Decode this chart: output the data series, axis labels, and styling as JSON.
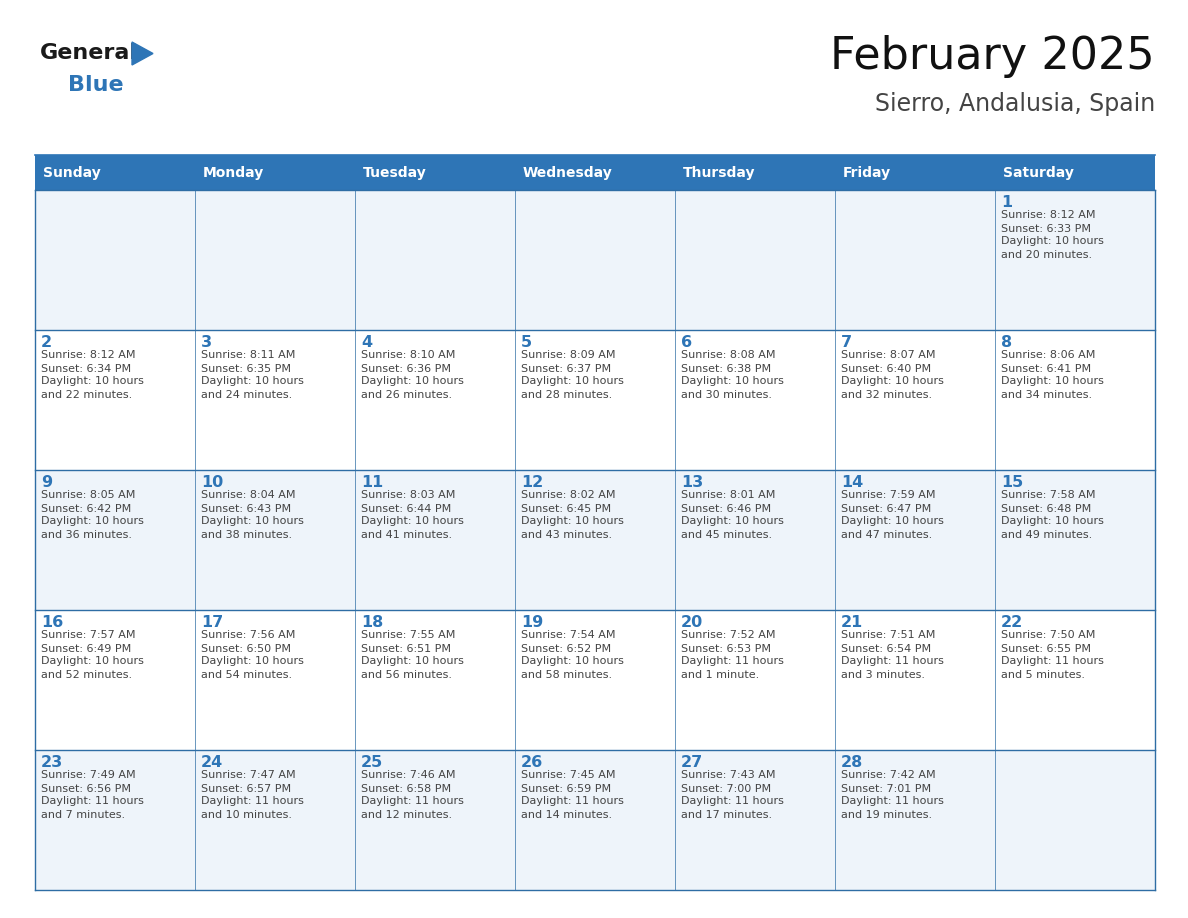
{
  "title": "February 2025",
  "subtitle": "Sierro, Andalusia, Spain",
  "header_bg": "#2E75B6",
  "header_text_color": "#FFFFFF",
  "cell_bg_even": "#EEF4FA",
  "cell_bg_odd": "#FFFFFF",
  "text_color": "#444444",
  "day_number_color": "#2E75B6",
  "border_color": "#2E6DA4",
  "separator_color": "#2E75B6",
  "days_of_week": [
    "Sunday",
    "Monday",
    "Tuesday",
    "Wednesday",
    "Thursday",
    "Friday",
    "Saturday"
  ],
  "calendar_data": [
    [
      null,
      null,
      null,
      null,
      null,
      null,
      {
        "day": "1",
        "sunrise": "8:12 AM",
        "sunset": "6:33 PM",
        "dl1": "Daylight: 10 hours",
        "dl2": "and 20 minutes."
      }
    ],
    [
      {
        "day": "2",
        "sunrise": "8:12 AM",
        "sunset": "6:34 PM",
        "dl1": "Daylight: 10 hours",
        "dl2": "and 22 minutes."
      },
      {
        "day": "3",
        "sunrise": "8:11 AM",
        "sunset": "6:35 PM",
        "dl1": "Daylight: 10 hours",
        "dl2": "and 24 minutes."
      },
      {
        "day": "4",
        "sunrise": "8:10 AM",
        "sunset": "6:36 PM",
        "dl1": "Daylight: 10 hours",
        "dl2": "and 26 minutes."
      },
      {
        "day": "5",
        "sunrise": "8:09 AM",
        "sunset": "6:37 PM",
        "dl1": "Daylight: 10 hours",
        "dl2": "and 28 minutes."
      },
      {
        "day": "6",
        "sunrise": "8:08 AM",
        "sunset": "6:38 PM",
        "dl1": "Daylight: 10 hours",
        "dl2": "and 30 minutes."
      },
      {
        "day": "7",
        "sunrise": "8:07 AM",
        "sunset": "6:40 PM",
        "dl1": "Daylight: 10 hours",
        "dl2": "and 32 minutes."
      },
      {
        "day": "8",
        "sunrise": "8:06 AM",
        "sunset": "6:41 PM",
        "dl1": "Daylight: 10 hours",
        "dl2": "and 34 minutes."
      }
    ],
    [
      {
        "day": "9",
        "sunrise": "8:05 AM",
        "sunset": "6:42 PM",
        "dl1": "Daylight: 10 hours",
        "dl2": "and 36 minutes."
      },
      {
        "day": "10",
        "sunrise": "8:04 AM",
        "sunset": "6:43 PM",
        "dl1": "Daylight: 10 hours",
        "dl2": "and 38 minutes."
      },
      {
        "day": "11",
        "sunrise": "8:03 AM",
        "sunset": "6:44 PM",
        "dl1": "Daylight: 10 hours",
        "dl2": "and 41 minutes."
      },
      {
        "day": "12",
        "sunrise": "8:02 AM",
        "sunset": "6:45 PM",
        "dl1": "Daylight: 10 hours",
        "dl2": "and 43 minutes."
      },
      {
        "day": "13",
        "sunrise": "8:01 AM",
        "sunset": "6:46 PM",
        "dl1": "Daylight: 10 hours",
        "dl2": "and 45 minutes."
      },
      {
        "day": "14",
        "sunrise": "7:59 AM",
        "sunset": "6:47 PM",
        "dl1": "Daylight: 10 hours",
        "dl2": "and 47 minutes."
      },
      {
        "day": "15",
        "sunrise": "7:58 AM",
        "sunset": "6:48 PM",
        "dl1": "Daylight: 10 hours",
        "dl2": "and 49 minutes."
      }
    ],
    [
      {
        "day": "16",
        "sunrise": "7:57 AM",
        "sunset": "6:49 PM",
        "dl1": "Daylight: 10 hours",
        "dl2": "and 52 minutes."
      },
      {
        "day": "17",
        "sunrise": "7:56 AM",
        "sunset": "6:50 PM",
        "dl1": "Daylight: 10 hours",
        "dl2": "and 54 minutes."
      },
      {
        "day": "18",
        "sunrise": "7:55 AM",
        "sunset": "6:51 PM",
        "dl1": "Daylight: 10 hours",
        "dl2": "and 56 minutes."
      },
      {
        "day": "19",
        "sunrise": "7:54 AM",
        "sunset": "6:52 PM",
        "dl1": "Daylight: 10 hours",
        "dl2": "and 58 minutes."
      },
      {
        "day": "20",
        "sunrise": "7:52 AM",
        "sunset": "6:53 PM",
        "dl1": "Daylight: 11 hours",
        "dl2": "and 1 minute."
      },
      {
        "day": "21",
        "sunrise": "7:51 AM",
        "sunset": "6:54 PM",
        "dl1": "Daylight: 11 hours",
        "dl2": "and 3 minutes."
      },
      {
        "day": "22",
        "sunrise": "7:50 AM",
        "sunset": "6:55 PM",
        "dl1": "Daylight: 11 hours",
        "dl2": "and 5 minutes."
      }
    ],
    [
      {
        "day": "23",
        "sunrise": "7:49 AM",
        "sunset": "6:56 PM",
        "dl1": "Daylight: 11 hours",
        "dl2": "and 7 minutes."
      },
      {
        "day": "24",
        "sunrise": "7:47 AM",
        "sunset": "6:57 PM",
        "dl1": "Daylight: 11 hours",
        "dl2": "and 10 minutes."
      },
      {
        "day": "25",
        "sunrise": "7:46 AM",
        "sunset": "6:58 PM",
        "dl1": "Daylight: 11 hours",
        "dl2": "and 12 minutes."
      },
      {
        "day": "26",
        "sunrise": "7:45 AM",
        "sunset": "6:59 PM",
        "dl1": "Daylight: 11 hours",
        "dl2": "and 14 minutes."
      },
      {
        "day": "27",
        "sunrise": "7:43 AM",
        "sunset": "7:00 PM",
        "dl1": "Daylight: 11 hours",
        "dl2": "and 17 minutes."
      },
      {
        "day": "28",
        "sunrise": "7:42 AM",
        "sunset": "7:01 PM",
        "dl1": "Daylight: 11 hours",
        "dl2": "and 19 minutes."
      },
      null
    ]
  ]
}
